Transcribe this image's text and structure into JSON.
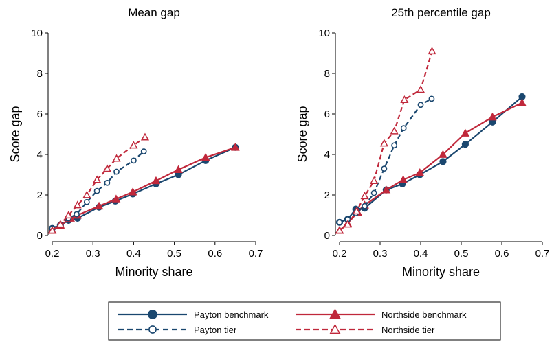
{
  "colors": {
    "payton": "#1a476f",
    "northside": "#c0283b"
  },
  "chart_data": [
    {
      "type": "line",
      "title": "Mean gap",
      "xlabel": "Minority share",
      "ylabel": "Score gap",
      "xlim": [
        0.2,
        0.7
      ],
      "ylim": [
        0,
        10
      ],
      "xticks": [
        "0.2",
        "0.3",
        "0.4",
        "0.5",
        "0.6",
        "0.7"
      ],
      "yticks": [
        "0",
        "2",
        "4",
        "6",
        "8",
        "10"
      ],
      "series": [
        {
          "name": "Payton benchmark",
          "key": "payton",
          "style": "solid",
          "marker": "circle",
          "x": [
            0.2,
            0.22,
            0.24,
            0.262,
            0.315,
            0.355,
            0.398,
            0.455,
            0.51,
            0.577,
            0.65
          ],
          "y": [
            0.35,
            0.5,
            0.75,
            0.85,
            1.4,
            1.7,
            2.05,
            2.55,
            3.0,
            3.7,
            4.35
          ]
        },
        {
          "name": "Northside benchmark",
          "key": "northside",
          "style": "solid",
          "marker": "triangle",
          "x": [
            0.2,
            0.22,
            0.245,
            0.262,
            0.315,
            0.357,
            0.398,
            0.455,
            0.51,
            0.577,
            0.65
          ],
          "y": [
            0.25,
            0.5,
            0.85,
            1.0,
            1.45,
            1.8,
            2.15,
            2.7,
            3.25,
            3.85,
            4.35
          ]
        },
        {
          "name": "Payton tier",
          "key": "payton",
          "style": "dashed",
          "marker": "circle-open",
          "x": [
            0.2,
            0.22,
            0.24,
            0.26,
            0.285,
            0.31,
            0.335,
            0.358,
            0.4,
            0.425
          ],
          "y": [
            0.35,
            0.55,
            0.85,
            1.05,
            1.65,
            2.2,
            2.6,
            3.15,
            3.7,
            4.15
          ]
        },
        {
          "name": "Northside tier",
          "key": "northside",
          "style": "dashed",
          "marker": "triangle-open",
          "x": [
            0.2,
            0.22,
            0.24,
            0.262,
            0.285,
            0.31,
            0.335,
            0.358,
            0.4,
            0.428
          ],
          "y": [
            0.25,
            0.55,
            1.0,
            1.5,
            2.0,
            2.75,
            3.3,
            3.8,
            4.45,
            4.85
          ]
        }
      ]
    },
    {
      "type": "line",
      "title": "25th percentile gap",
      "xlabel": "Minority share",
      "ylabel": "Score gap",
      "xlim": [
        0.2,
        0.7
      ],
      "ylim": [
        0,
        10
      ],
      "xticks": [
        "0.2",
        "0.3",
        "0.4",
        "0.5",
        "0.6",
        "0.7"
      ],
      "yticks": [
        "0",
        "2",
        "4",
        "6",
        "8",
        "10"
      ],
      "series": [
        {
          "name": "Payton benchmark",
          "key": "payton",
          "style": "solid",
          "marker": "circle",
          "x": [
            0.2,
            0.22,
            0.24,
            0.262,
            0.315,
            0.355,
            0.398,
            0.455,
            0.51,
            0.577,
            0.65
          ],
          "y": [
            0.65,
            0.8,
            1.3,
            1.35,
            2.25,
            2.55,
            3.0,
            3.65,
            4.5,
            5.6,
            6.85
          ]
        },
        {
          "name": "Northside benchmark",
          "key": "northside",
          "style": "solid",
          "marker": "triangle",
          "x": [
            0.2,
            0.22,
            0.245,
            0.262,
            0.315,
            0.357,
            0.398,
            0.455,
            0.51,
            0.577,
            0.65
          ],
          "y": [
            0.25,
            0.6,
            1.15,
            1.5,
            2.25,
            2.75,
            3.1,
            4.0,
            5.05,
            5.85,
            6.55
          ]
        },
        {
          "name": "Payton tier",
          "key": "payton",
          "style": "dashed",
          "marker": "circle-open",
          "x": [
            0.2,
            0.22,
            0.24,
            0.262,
            0.285,
            0.31,
            0.335,
            0.358,
            0.4,
            0.427
          ],
          "y": [
            0.65,
            0.8,
            1.1,
            1.45,
            2.1,
            3.3,
            4.45,
            5.3,
            6.45,
            6.75
          ]
        },
        {
          "name": "Northside tier",
          "key": "northside",
          "style": "dashed",
          "marker": "triangle-open",
          "x": [
            0.2,
            0.22,
            0.242,
            0.262,
            0.285,
            0.31,
            0.335,
            0.36,
            0.4,
            0.428
          ],
          "y": [
            0.25,
            0.55,
            1.2,
            1.95,
            2.7,
            4.55,
            5.15,
            6.7,
            7.2,
            9.1
          ]
        }
      ]
    }
  ],
  "legend": {
    "items": [
      {
        "label": "Payton benchmark",
        "key": "payton",
        "style": "solid",
        "marker": "circle"
      },
      {
        "label": "Northside benchmark",
        "key": "northside",
        "style": "solid",
        "marker": "triangle"
      },
      {
        "label": "Payton tier",
        "key": "payton",
        "style": "dashed",
        "marker": "circle-open"
      },
      {
        "label": "Northside tier",
        "key": "northside",
        "style": "dashed",
        "marker": "triangle-open"
      }
    ]
  }
}
